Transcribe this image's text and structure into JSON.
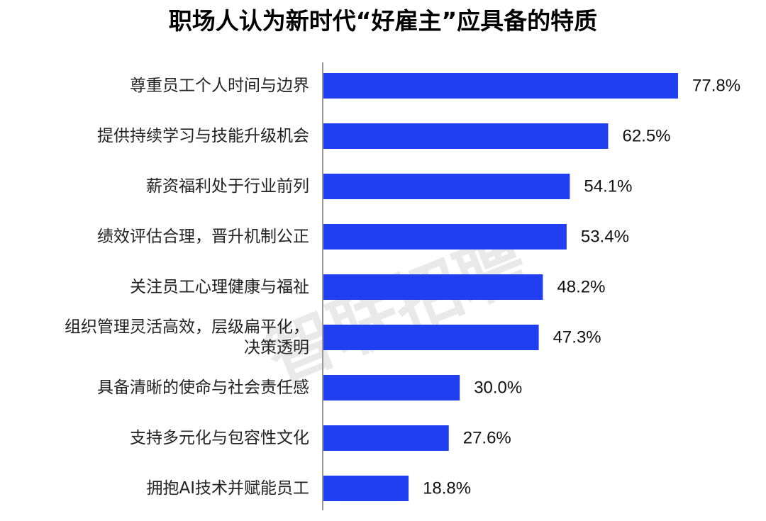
{
  "chart_data": {
    "type": "bar",
    "orientation": "horizontal",
    "title": "职场人认为新时代“好雇主”应具备的特质",
    "categories": [
      "尊重员工个人时间与边界",
      "提供持续学习与技能升级机会",
      "薪资福利处于行业前列",
      "绩效评估合理，晋升机制公正",
      "关注员工心理健康与福祉",
      "组织管理灵活高效，层级扁平化，决策透明",
      "具备清晰的使命与社会责任感",
      "支持多元化与包容性文化",
      "拥抱AI技术并赋能员工"
    ],
    "category_lines": [
      [
        "尊重员工个人时间与边界"
      ],
      [
        "提供持续学习与技能升级机会"
      ],
      [
        "薪资福利处于行业前列"
      ],
      [
        "绩效评估合理，晋升机制公正"
      ],
      [
        "关注员工心理健康与福祉"
      ],
      [
        "组织管理灵活高效，层级扁平化，",
        "决策透明"
      ],
      [
        "具备清晰的使命与社会责任感"
      ],
      [
        "支持多元化与包容性文化"
      ],
      [
        "拥抱AI技术并赋能员工"
      ]
    ],
    "values": [
      77.8,
      62.5,
      54.1,
      53.4,
      48.2,
      47.3,
      30.0,
      27.6,
      18.8
    ],
    "value_labels": [
      "77.8%",
      "62.5%",
      "54.1%",
      "53.4%",
      "48.2%",
      "47.3%",
      "30.0%",
      "27.6%",
      "18.8%"
    ],
    "unit": "%",
    "xlim": [
      0,
      100
    ],
    "bar_color": "#1f3ff0",
    "axis_color": "#999999",
    "grid": false,
    "legend": "none",
    "watermark": "智联招聘"
  }
}
